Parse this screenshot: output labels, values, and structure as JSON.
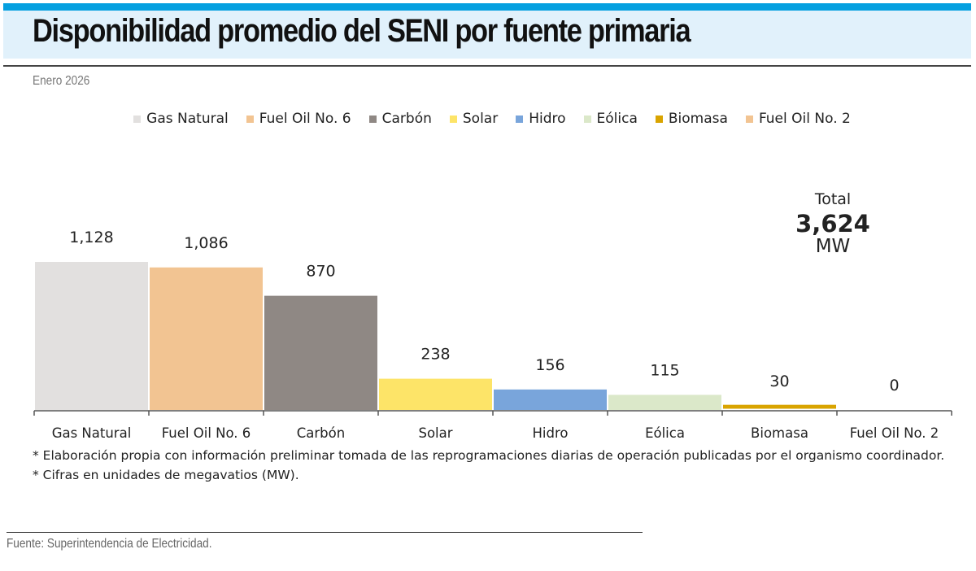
{
  "title": "Disponibilidad promedio del SENI por fuente primaria",
  "subtitle": "Enero 2026",
  "total": {
    "label": "Total",
    "value": "3,624",
    "unit": "MW"
  },
  "notes": [
    "* Elaboración propia con información preliminar tomada de las reprogramaciones diarias de operación publicadas por el organismo coordinador.",
    "* Cifras en unidades de megavatios (MW)."
  ],
  "source": "Fuente: Superintendencia de Electricidad.",
  "chart_data": {
    "type": "bar",
    "categories": [
      "Gas Natural",
      "Fuel Oil No. 6",
      "Carbón",
      "Solar",
      "Hidro",
      "Eólica",
      "Biomasa",
      "Fuel Oil No. 2"
    ],
    "values": [
      1128,
      1086,
      870,
      238,
      156,
      115,
      30,
      0
    ],
    "value_labels": [
      "1,128",
      "1,086",
      "870",
      "238",
      "156",
      "115",
      "30",
      "0"
    ],
    "colors": [
      "#e2e0df",
      "#f2c492",
      "#8f8884",
      "#fde468",
      "#79a5db",
      "#dbe8c9",
      "#d9a400",
      "#f2c492"
    ],
    "legend": [
      "Gas Natural",
      "Fuel Oil No. 6",
      "Carbón",
      "Solar",
      "Hidro",
      "Eólica",
      "Biomasa",
      "Fuel Oil No. 2"
    ],
    "legend_placement": "top-center",
    "ylim": [
      0,
      1128
    ],
    "grid": false
  }
}
